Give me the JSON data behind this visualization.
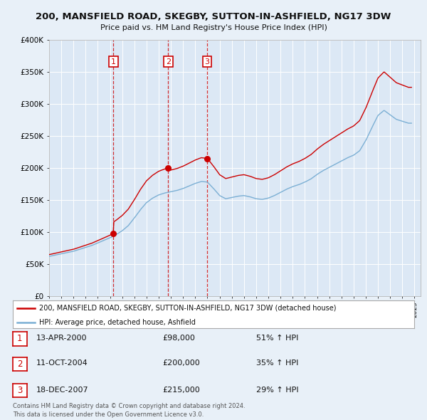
{
  "title": "200, MANSFIELD ROAD, SKEGBY, SUTTON-IN-ASHFIELD, NG17 3DW",
  "subtitle": "Price paid vs. HM Land Registry's House Price Index (HPI)",
  "background_color": "#e8f0f8",
  "plot_bg_color": "#dce8f5",
  "grid_color": "#ffffff",
  "sale_color": "#cc0000",
  "hpi_color": "#7bafd4",
  "transactions": [
    {
      "date": 2000.28,
      "price": 98000,
      "label": "1"
    },
    {
      "date": 2004.78,
      "price": 200000,
      "label": "2"
    },
    {
      "date": 2007.96,
      "price": 215000,
      "label": "3"
    }
  ],
  "transaction_details": [
    {
      "num": "1",
      "date": "13-APR-2000",
      "price": "£98,000",
      "hpi": "51% ↑ HPI"
    },
    {
      "num": "2",
      "date": "11-OCT-2004",
      "price": "£200,000",
      "hpi": "35% ↑ HPI"
    },
    {
      "num": "3",
      "date": "18-DEC-2007",
      "price": "£215,000",
      "hpi": "29% ↑ HPI"
    }
  ],
  "legend_entries": [
    "200, MANSFIELD ROAD, SKEGBY, SUTTON-IN-ASHFIELD, NG17 3DW (detached house)",
    "HPI: Average price, detached house, Ashfield"
  ],
  "footer": "Contains HM Land Registry data © Crown copyright and database right 2024.\nThis data is licensed under the Open Government Licence v3.0.",
  "ylim": [
    0,
    400000
  ],
  "yticks": [
    0,
    50000,
    100000,
    150000,
    200000,
    250000,
    300000,
    350000,
    400000
  ],
  "ytick_labels": [
    "£0",
    "£50K",
    "£100K",
    "£150K",
    "£200K",
    "£250K",
    "£300K",
    "£350K",
    "£400K"
  ],
  "x_min": 1995,
  "x_max": 2025
}
